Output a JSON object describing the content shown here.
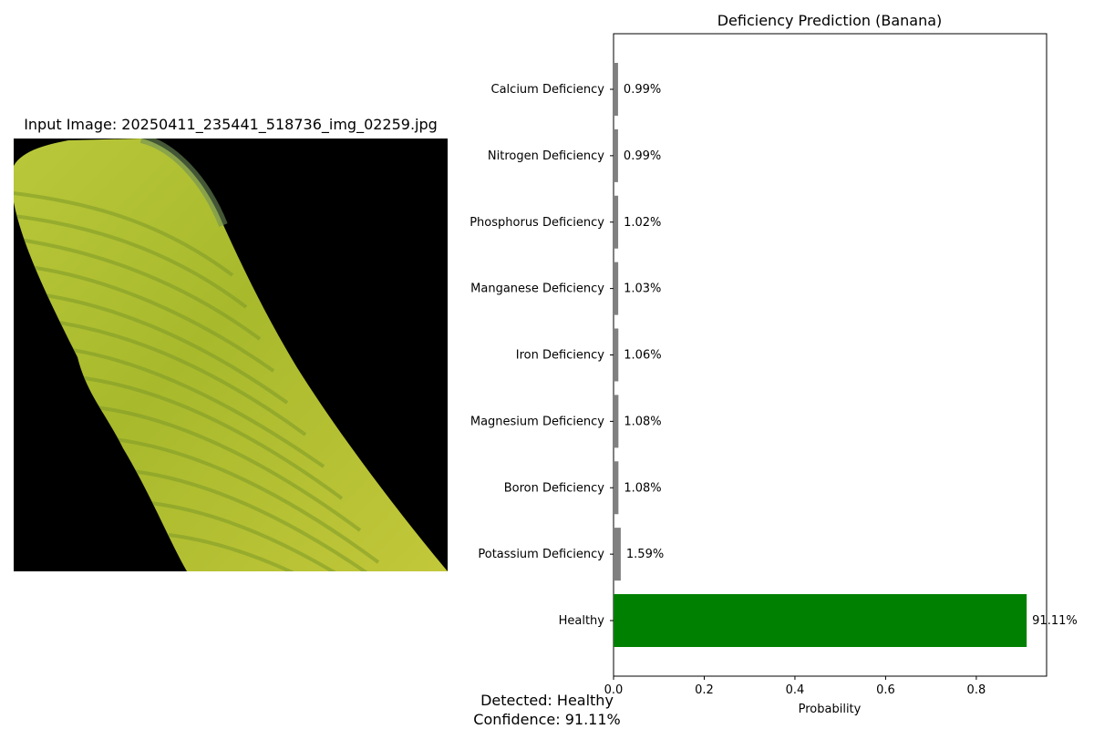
{
  "image_panel": {
    "title": "Input Image: 20250411_235441_518736_img_02259.jpg",
    "subject": "banana-leaf-photo"
  },
  "chart_data": {
    "type": "bar",
    "orientation": "horizontal",
    "title": "Deficiency Prediction (Banana)",
    "xlabel": "Probability",
    "ylabel": "",
    "xlim": [
      0,
      0.955
    ],
    "xticks": [
      "0.0",
      "0.2",
      "0.4",
      "0.6",
      "0.8"
    ],
    "xtick_values": [
      0,
      0.2,
      0.4,
      0.6,
      0.8
    ],
    "grid": false,
    "categories": [
      "Calcium Deficiency",
      "Nitrogen Deficiency",
      "Phosphorus Deficiency",
      "Manganese Deficiency",
      "Iron Deficiency",
      "Magnesium Deficiency",
      "Boron Deficiency",
      "Potassium Deficiency",
      "Healthy"
    ],
    "values": [
      0.0099,
      0.0099,
      0.0102,
      0.0103,
      0.0106,
      0.0108,
      0.0108,
      0.0159,
      0.9111
    ],
    "labels": [
      "0.99%",
      "0.99%",
      "1.02%",
      "1.03%",
      "1.06%",
      "1.08%",
      "1.08%",
      "1.59%",
      "91.11%"
    ],
    "colors": [
      "#808080",
      "#808080",
      "#808080",
      "#808080",
      "#808080",
      "#808080",
      "#808080",
      "#808080",
      "#008000"
    ]
  },
  "footer": {
    "detected": "Detected: Healthy",
    "confidence": "Confidence: 91.11%"
  }
}
